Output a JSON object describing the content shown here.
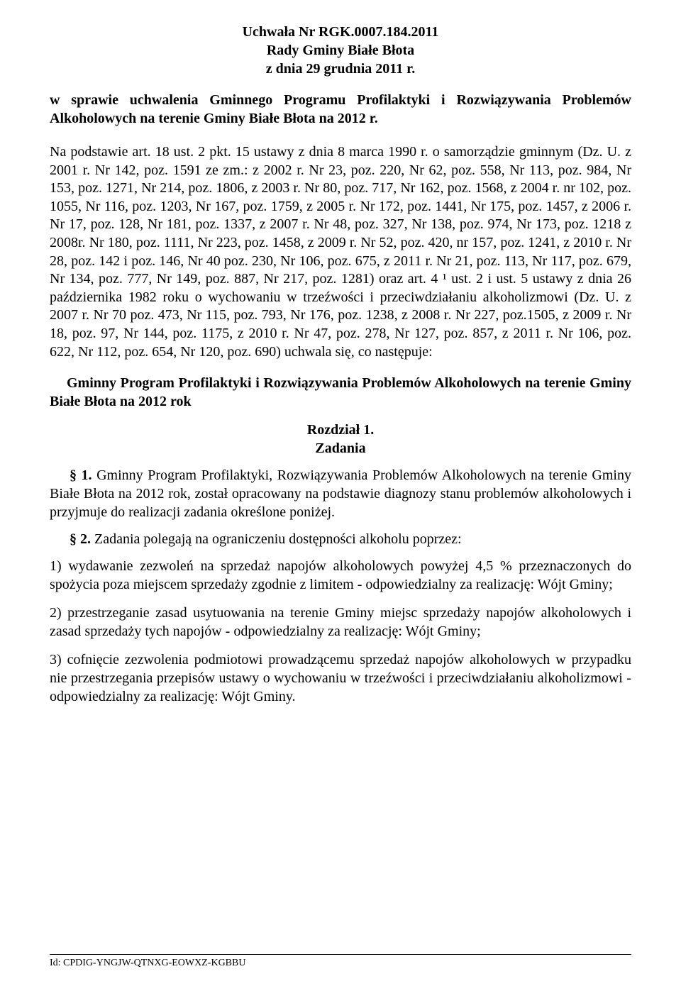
{
  "page": {
    "background_color": "#ffffff",
    "text_color": "#000000",
    "font_family": "Times New Roman",
    "body_fontsize_pt": 15,
    "footer_fontsize_pt": 10
  },
  "header": {
    "line1": "Uchwała Nr RGK.0007.184.2011",
    "line2": "Rady Gminy Białe Błota",
    "line3": "z dnia 29 grudnia 2011 r."
  },
  "subject": "w sprawie uchwalenia Gminnego Programu Profilaktyki i Rozwiązywania Problemów Alkoholowych na terenie Gminy Białe Błota na 2012 r.",
  "legal_basis": "Na podstawie art. 18 ust. 2 pkt. 15 ustawy z dnia 8 marca 1990 r. o samorządzie gminnym (Dz. U. z 2001 r. Nr 142, poz. 1591 ze zm.: z 2002 r. Nr 23, poz. 220, Nr 62, poz. 558, Nr 113, poz. 984, Nr 153, poz. 1271, Nr 214, poz. 1806, z 2003 r. Nr 80, poz. 717, Nr 162, poz. 1568, z 2004 r. nr 102, poz. 1055, Nr 116, poz. 1203, Nr 167, poz. 1759, z 2005 r. Nr 172, poz. 1441, Nr 175, poz. 1457, z 2006 r. Nr 17, poz. 128, Nr 181, poz. 1337, z 2007 r. Nr 48, poz. 327, Nr 138, poz. 974, Nr 173, poz. 1218 z 2008r. Nr 180, poz. 1111, Nr 223, poz. 1458, z 2009 r. Nr 52, poz. 420, nr 157, poz. 1241, z 2010 r. Nr 28, poz. 142 i poz. 146, Nr 40 poz. 230, Nr 106, poz. 675, z 2011 r. Nr 21, poz. 113, Nr 117, poz. 679, Nr 134, poz. 777, Nr 149, poz. 887, Nr 217, poz. 1281) oraz art. 4 ¹ ust. 2 i ust. 5 ustawy z dnia 26 października 1982 roku o wychowaniu w trzeźwości i przeciwdziałaniu alkoholizmowi (Dz. U. z 2007 r. Nr 70 poz. 473, Nr 115, poz. 793, Nr 176, poz. 1238, z 2008 r. Nr 227, poz.1505, z 2009 r. Nr 18, poz. 97, Nr 144, poz. 1175, z 2010 r. Nr 47, poz. 278, Nr 127, poz. 857, z 2011 r. Nr 106, poz. 622, Nr 112, poz. 654, Nr 120, poz. 690) uchwala się, co następuje:",
  "program_title": "Gminny Program Profilaktyki i Rozwiązywania Problemów Alkoholowych na terenie Gminy Białe Błota na 2012 rok",
  "chapter": {
    "label": "Rozdział 1.",
    "title": "Zadania"
  },
  "paragraphs": {
    "p1_lead": "§ 1. ",
    "p1_text": "Gminny Program Profilaktyki, Rozwiązywania Problemów Alkoholowych na terenie Gminy Białe Błota na 2012 rok, został opracowany na podstawie diagnozy stanu problemów alkoholowych i przyjmuje do realizacji zadania określone poniżej.",
    "p2_lead": "§ 2. ",
    "p2_text": "Zadania polegają na ograniczeniu dostępności alkoholu poprzez:"
  },
  "list": {
    "item1": "1) wydawanie zezwoleń na sprzedaż napojów alkoholowych powyżej 4,5 % przeznaczonych do spożycia poza miejscem sprzedaży zgodnie z limitem - odpowiedzialny za realizację: Wójt Gminy;",
    "item2": "2) przestrzeganie zasad usytuowania na terenie Gminy miejsc sprzedaży napojów alkoholowych i zasad sprzedaży tych napojów - odpowiedzialny za realizację: Wójt Gminy;",
    "item3": "3) cofnięcie zezwolenia podmiotowi prowadzącemu sprzedaż napojów alkoholowych w przypadku nie przestrzegania przepisów ustawy o wychowaniu w trzeźwości i przeciwdziałaniu alkoholizmowi - odpowiedzialny za realizację: Wójt Gminy."
  },
  "footer": {
    "id": "Id: CPDIG-YNGJW-QTNXG-EOWXZ-KGBBU"
  }
}
